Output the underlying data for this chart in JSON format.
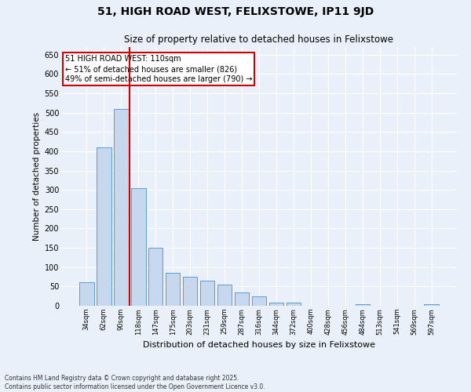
{
  "title": "51, HIGH ROAD WEST, FELIXSTOWE, IP11 9JD",
  "subtitle": "Size of property relative to detached houses in Felixstowe",
  "xlabel": "Distribution of detached houses by size in Felixstowe",
  "ylabel": "Number of detached properties",
  "footnote": "Contains HM Land Registry data © Crown copyright and database right 2025.\nContains public sector information licensed under the Open Government Licence v3.0.",
  "bar_color": "#c5d8ed",
  "bar_edge_color": "#5b9bd5",
  "annotation_box_color": "#cc0000",
  "vline_color": "#cc0000",
  "background_color": "#eaf0f9",
  "grid_color": "#ffffff",
  "categories": [
    "34sqm",
    "62sqm",
    "90sqm",
    "118sqm",
    "147sqm",
    "175sqm",
    "203sqm",
    "231sqm",
    "259sqm",
    "287sqm",
    "316sqm",
    "344sqm",
    "372sqm",
    "400sqm",
    "428sqm",
    "456sqm",
    "484sqm",
    "513sqm",
    "541sqm",
    "569sqm",
    "597sqm"
  ],
  "values": [
    60,
    410,
    510,
    305,
    150,
    85,
    75,
    65,
    55,
    35,
    25,
    8,
    8,
    0,
    0,
    0,
    5,
    0,
    0,
    0,
    5
  ],
  "vline_x_index": 2.5,
  "annotation_text": "51 HIGH ROAD WEST: 110sqm\n← 51% of detached houses are smaller (826)\n49% of semi-detached houses are larger (790) →",
  "ylim": [
    0,
    670
  ],
  "yticks": [
    0,
    50,
    100,
    150,
    200,
    250,
    300,
    350,
    400,
    450,
    500,
    550,
    600,
    650
  ]
}
